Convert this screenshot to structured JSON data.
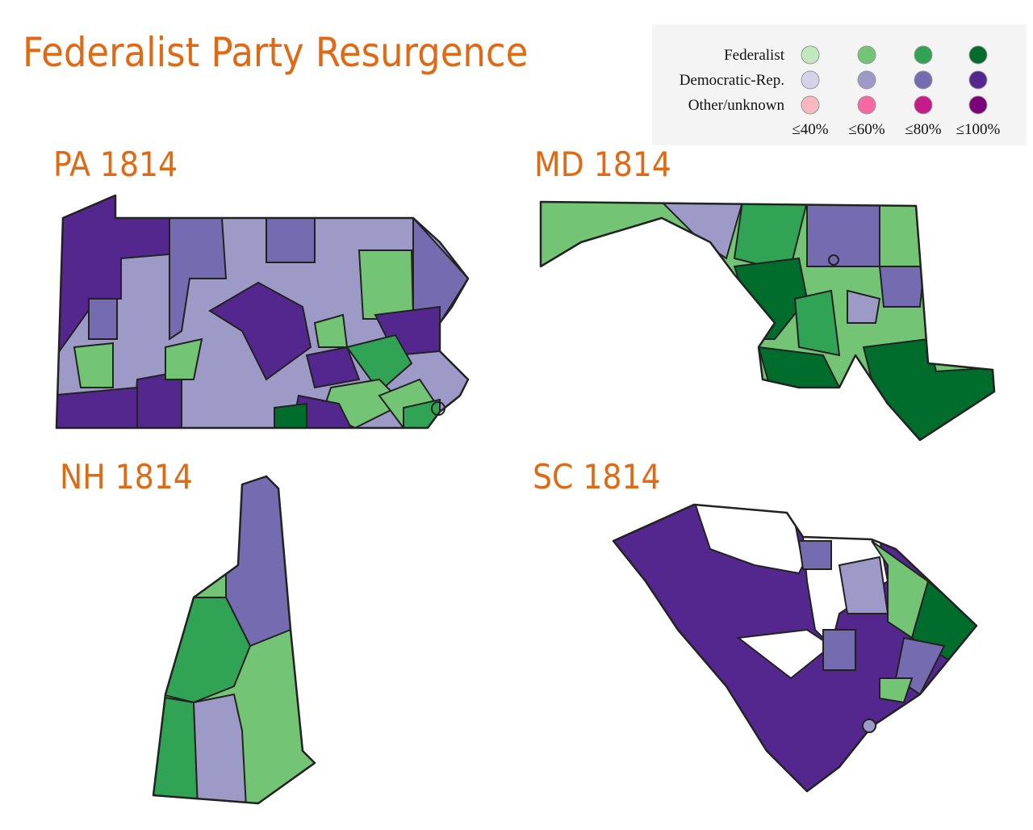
{
  "title": "Federalist Party Resurgence",
  "legend": {
    "rows": [
      {
        "label": "Federalist",
        "colors": [
          "#c2e8c0",
          "#74c476",
          "#31a354",
          "#006d2c"
        ]
      },
      {
        "label": "Democratic-Rep.",
        "colors": [
          "#d4d3ea",
          "#9e9ac8",
          "#756bb1",
          "#54278f"
        ]
      },
      {
        "label": "Other/unknown",
        "colors": [
          "#f9b8c0",
          "#f768a1",
          "#c51b8a",
          "#7a0177"
        ]
      }
    ],
    "columns": [
      "≤40%",
      "≤60%",
      "≤80%",
      "≤100%"
    ]
  },
  "maps": [
    {
      "title": "PA 1814"
    },
    {
      "title": "MD 1814"
    },
    {
      "title": "NH 1814"
    },
    {
      "title": "SC 1814"
    }
  ]
}
